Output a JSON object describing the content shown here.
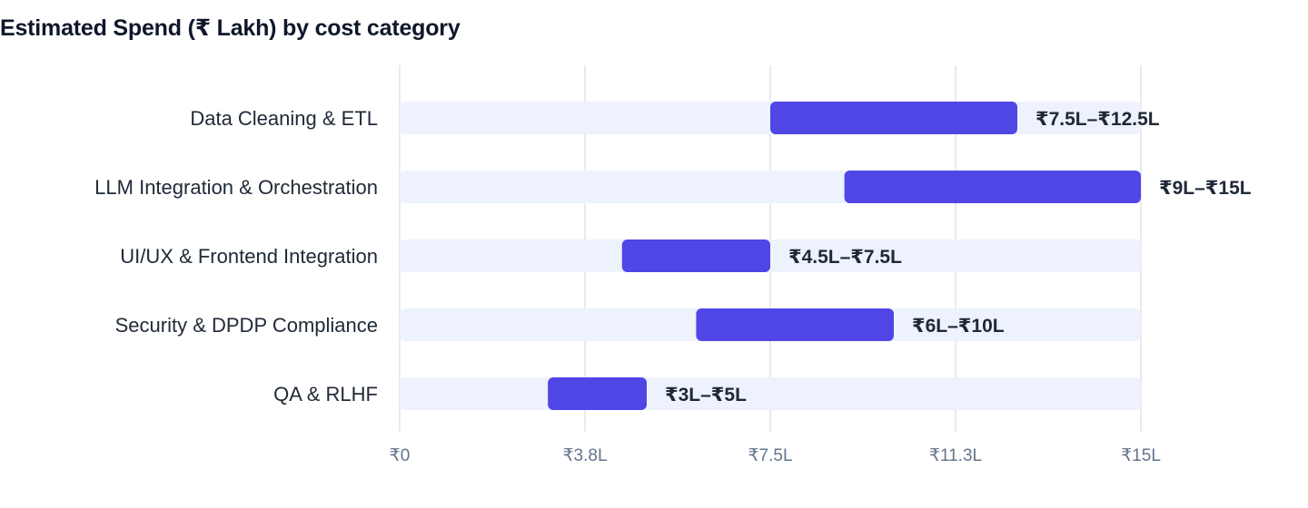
{
  "title": "Estimated Spend (₹ Lakh) by cost category",
  "colors": {
    "bar": "#4f46e5",
    "track": "#eef2fd",
    "grid": "#e2e4e8",
    "title": "#0f172a",
    "text": "#1f2937",
    "tick": "#64748b"
  },
  "chart_data": {
    "type": "bar",
    "orientation": "horizontal",
    "subtype": "floating-range",
    "title": "Estimated Spend (₹ Lakh) by cost category",
    "xlabel": "",
    "ylabel": "",
    "xlim": [
      0,
      15
    ],
    "grid": true,
    "legend": "none",
    "xticks": [
      {
        "value": 0,
        "label": "₹0"
      },
      {
        "value": 3.75,
        "label": "₹3.8L"
      },
      {
        "value": 7.5,
        "label": "₹7.5L"
      },
      {
        "value": 11.25,
        "label": "₹11.3L"
      },
      {
        "value": 15,
        "label": "₹15L"
      }
    ],
    "categories": [
      "Data Cleaning & ETL",
      "LLM Integration & Orchestration",
      "UI/UX & Frontend Integration",
      "Security & DPDP Compliance",
      "QA & RLHF"
    ],
    "ranges": [
      {
        "low": 7.5,
        "high": 12.5,
        "label": "₹7.5L–₹12.5L"
      },
      {
        "low": 9,
        "high": 15,
        "label": "₹9L–₹15L"
      },
      {
        "low": 4.5,
        "high": 7.5,
        "label": "₹4.5L–₹7.5L"
      },
      {
        "low": 6,
        "high": 10,
        "label": "₹6L–₹10L"
      },
      {
        "low": 3,
        "high": 5,
        "label": "₹3L–₹5L"
      }
    ]
  }
}
